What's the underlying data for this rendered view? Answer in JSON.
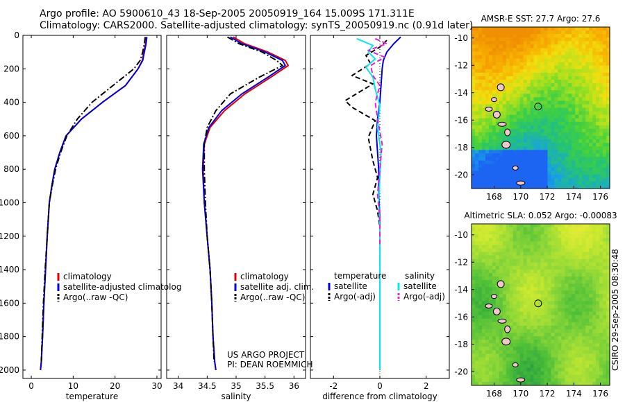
{
  "title_line1": "Argo profile: AO 5900610_43 18-Sep-2005 20050919_164 15.009S 171.311E",
  "title_line2": "Climatology: CARS2000. Satellite-adjusted climatology: synTS_20050919.nc (0.91d later)",
  "credit": "CSIRO 29-Sep-2005 08:30:48",
  "chart_data": [
    {
      "type": "line",
      "panel": "temperature",
      "xlabel": "temperature",
      "ylabel": "",
      "xlim": [
        -2,
        31
      ],
      "ylim": [
        2050,
        0
      ],
      "y_reversed": true,
      "xticks": [
        0,
        10,
        20,
        30
      ],
      "yticks": [
        0,
        200,
        400,
        600,
        800,
        1000,
        1200,
        1400,
        1600,
        1800,
        2000
      ],
      "legend": {
        "entries": [
          "climatology",
          "satellite-adjusted climatology",
          "Argo(..raw -QC)"
        ],
        "placement": "lower-right"
      },
      "series": [
        {
          "name": "climatology",
          "color": "#e00000",
          "dash": "solid",
          "x": [
            27.5,
            27.3,
            26.9,
            26.5,
            25.5,
            22.5,
            17.0,
            12.0,
            8.3,
            6.8,
            5.6,
            4.9,
            4.3,
            3.8,
            3.4,
            3.0,
            2.7,
            2.4,
            2.2
          ],
          "y": [
            10,
            50,
            100,
            150,
            200,
            300,
            400,
            500,
            600,
            700,
            800,
            900,
            1000,
            1200,
            1400,
            1600,
            1800,
            1950,
            2000
          ]
        },
        {
          "name": "satellite-adjusted climatology",
          "color": "#0000e0",
          "dash": "solid",
          "x": [
            27.6,
            27.4,
            27.0,
            26.6,
            25.5,
            22.5,
            17.0,
            12.0,
            8.3,
            6.8,
            5.6,
            4.9,
            4.3,
            3.8,
            3.4,
            3.0,
            2.7,
            2.4,
            2.2
          ],
          "y": [
            10,
            50,
            100,
            150,
            200,
            300,
            400,
            500,
            600,
            700,
            800,
            900,
            1000,
            1200,
            1400,
            1600,
            1800,
            1950,
            2000
          ]
        },
        {
          "name": "Argo(..raw -QC)",
          "color": "#000000",
          "dash": "dashdot",
          "x": [
            27.2,
            27.0,
            26.6,
            26.0,
            24.5,
            19.5,
            14.5,
            11.0,
            8.5,
            7.0,
            5.8,
            5.0,
            4.3,
            3.8,
            3.3,
            2.9,
            2.6,
            2.4
          ],
          "y": [
            10,
            50,
            100,
            150,
            200,
            300,
            400,
            500,
            600,
            700,
            800,
            900,
            1000,
            1200,
            1400,
            1600,
            1800,
            1950
          ]
        }
      ]
    },
    {
      "type": "line",
      "panel": "salinity",
      "xlabel": "salinity",
      "ylabel": "",
      "xlim": [
        33.8,
        36.2
      ],
      "ylim": [
        2050,
        0
      ],
      "y_reversed": true,
      "xticks": [
        34,
        34.5,
        35,
        35.5,
        36
      ],
      "legend": {
        "entries": [
          "climatology",
          "satellite adj. clim.",
          "Argo(..raw -QC)"
        ],
        "placement": "lower-right"
      },
      "series": [
        {
          "name": "climatology",
          "color": "#e00000",
          "dash": "solid",
          "x": [
            34.95,
            35.15,
            35.55,
            35.85,
            35.9,
            35.6,
            35.15,
            34.8,
            34.55,
            34.45,
            34.43,
            34.45,
            34.5,
            34.55,
            34.58,
            34.6,
            34.63,
            34.65
          ],
          "y": [
            10,
            50,
            100,
            150,
            180,
            250,
            350,
            450,
            550,
            650,
            800,
            1000,
            1200,
            1400,
            1600,
            1800,
            1950,
            2000
          ]
        },
        {
          "name": "satellite adj. clim.",
          "color": "#0000e0",
          "dash": "solid",
          "x": [
            34.9,
            35.1,
            35.5,
            35.8,
            35.85,
            35.55,
            35.1,
            34.75,
            34.53,
            34.44,
            34.42,
            34.45,
            34.5,
            34.55,
            34.58,
            34.6,
            34.63,
            34.65
          ],
          "y": [
            10,
            50,
            100,
            150,
            180,
            250,
            350,
            450,
            550,
            650,
            800,
            1000,
            1200,
            1400,
            1600,
            1800,
            1950,
            2000
          ]
        },
        {
          "name": "Argo(..raw -QC)",
          "color": "#000000",
          "dash": "dashdot",
          "x": [
            34.85,
            35.05,
            35.45,
            35.7,
            35.8,
            35.4,
            34.9,
            34.65,
            34.5,
            34.45,
            34.45,
            34.47,
            34.5,
            34.55,
            34.58,
            34.6,
            34.62
          ],
          "y": [
            10,
            50,
            100,
            150,
            180,
            250,
            350,
            450,
            550,
            650,
            800,
            1000,
            1200,
            1400,
            1600,
            1800,
            1950
          ]
        }
      ]
    },
    {
      "type": "line",
      "panel": "difference",
      "xlabel": "difference from climatology",
      "ylabel": "",
      "xlim": [
        -3,
        3
      ],
      "ylim": [
        2050,
        0
      ],
      "y_reversed": true,
      "xticks": [
        -2,
        0,
        2
      ],
      "legend": {
        "entries": [
          "temperature",
          "satellite",
          "Argo(-adj)",
          "salinity",
          "satellite",
          "Argo(-adj)"
        ],
        "placement": "lower"
      },
      "series": [
        {
          "name": "satellite",
          "group": "temperature",
          "color": "#0000e0",
          "dash": "solid",
          "x": [
            0.9,
            0.6,
            0.3,
            0.15,
            0.1,
            0.05,
            0.0,
            -0.1,
            -0.15,
            -0.1,
            -0.05,
            -0.05,
            -0.03,
            0.0,
            0.0,
            0.0,
            0.0,
            0.0
          ],
          "y": [
            10,
            50,
            100,
            150,
            200,
            300,
            400,
            500,
            600,
            700,
            800,
            900,
            1000,
            1100,
            1200,
            1400,
            1800,
            2000
          ]
        },
        {
          "name": "Argo(-adj)",
          "group": "temperature",
          "color": "#000000",
          "dash": "dashed",
          "x": [
            0.3,
            0.0,
            -0.6,
            -0.4,
            -1.2,
            -0.3,
            -1.5,
            -1.2,
            -0.2,
            -0.5,
            -0.3,
            -0.1,
            -0.3,
            -0.1,
            0.0
          ],
          "y": [
            30,
            70,
            120,
            170,
            240,
            290,
            390,
            430,
            510,
            610,
            750,
            850,
            950,
            1050,
            1150
          ]
        },
        {
          "name": "satellite",
          "group": "salinity",
          "color": "#00e8f0",
          "dash": "solid",
          "x": [
            -1.0,
            -0.3,
            -0.5,
            -0.2,
            -0.6,
            -0.3,
            -0.2,
            0.0,
            -0.1,
            0.05,
            0.0,
            -0.05,
            0.0,
            0.0,
            0.0
          ],
          "y": [
            20,
            60,
            100,
            140,
            190,
            250,
            320,
            420,
            550,
            700,
            850,
            1000,
            1150,
            1400,
            2000
          ]
        },
        {
          "name": "Argo(-adj)",
          "group": "salinity",
          "color": "#e020e0",
          "dash": "dashed",
          "x": [
            -0.2,
            0.3,
            -0.5,
            0.2,
            -0.4,
            -0.3,
            0.0,
            -0.2,
            -0.1,
            0.1,
            0.0,
            -0.1,
            0.0,
            0.0
          ],
          "y": [
            20,
            50,
            90,
            130,
            180,
            240,
            300,
            400,
            500,
            650,
            800,
            950,
            1100,
            1250
          ]
        }
      ]
    },
    {
      "type": "heatmap",
      "panel": "sst-map",
      "title": "AMSR-E SST: 27.7 Argo: 27.6",
      "xlim": [
        166.3,
        176.7
      ],
      "ylim": [
        -21.0,
        -9.2
      ],
      "xticks": [
        168,
        170,
        172,
        174,
        176
      ],
      "yticks": [
        -10,
        -12,
        -14,
        -16,
        -18,
        -20
      ],
      "marker": {
        "lon": 171.311,
        "lat": -15.009
      },
      "colormap": [
        "#1c64f2",
        "#18a0e8",
        "#22c080",
        "#40d040",
        "#a0e020",
        "#f0e010",
        "#f8b000",
        "#f09000"
      ]
    },
    {
      "type": "heatmap",
      "panel": "sla-map",
      "title": "Altimetric SLA: 0.052 Argo: -0.00083",
      "xlim": [
        166.3,
        176.7
      ],
      "ylim": [
        -21.0,
        -9.2
      ],
      "xticks": [
        168,
        170,
        172,
        174,
        176
      ],
      "yticks": [
        -10,
        -12,
        -14,
        -16,
        -18,
        -20
      ],
      "marker": {
        "lon": 171.311,
        "lat": -15.009
      },
      "colormap": [
        "#28a040",
        "#50c038",
        "#90d838",
        "#c8e830",
        "#e8ec38"
      ]
    }
  ],
  "panel_text": {
    "temp_legend": [
      "climatology",
      "satellite-adjusted climatolog",
      "Argo(..raw -QC)"
    ],
    "sal_legend": [
      "climatology",
      "satellite adj. clim.",
      "Argo(..raw -QC)"
    ],
    "diff_legend_left": [
      "temperature",
      "satellite",
      "Argo(-adj)"
    ],
    "diff_legend_right": [
      "salinity",
      "satellite",
      "Argo(-adj)"
    ],
    "project": "US ARGO PROJECT",
    "pi": "PI: DEAN ROEMMICH"
  }
}
